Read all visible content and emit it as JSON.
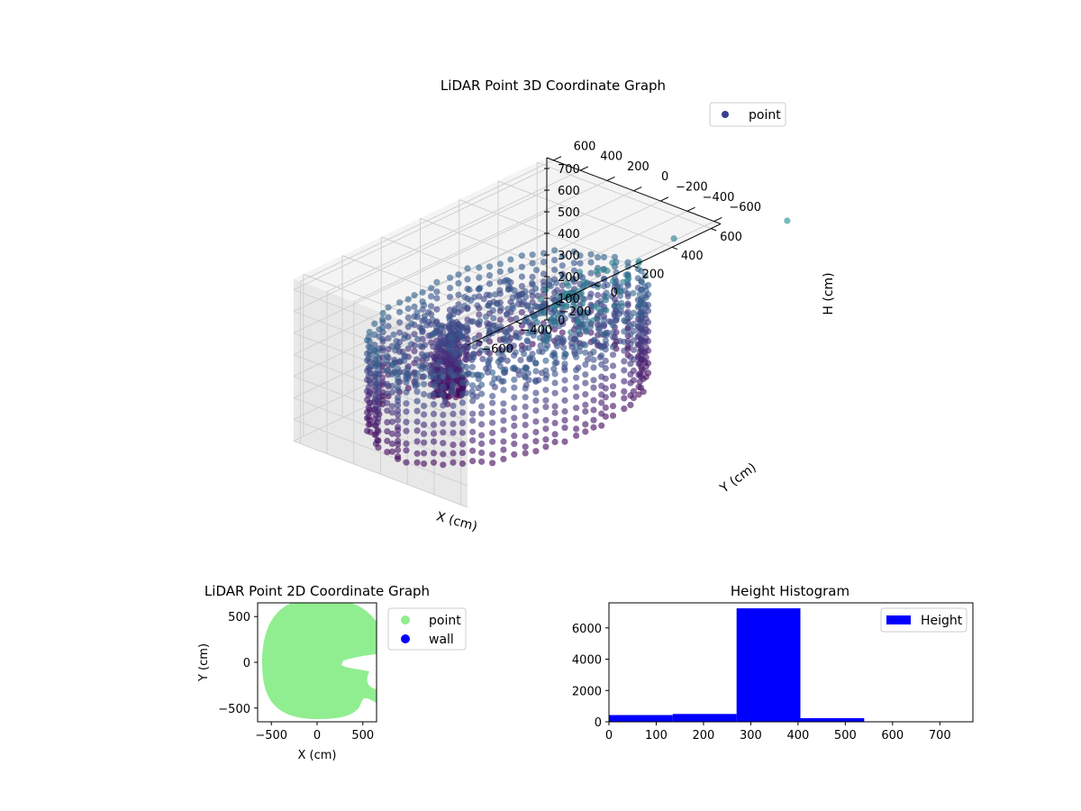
{
  "chart_data": [
    {
      "type": "scatter",
      "projection": "3d",
      "title": "LiDAR Point 3D Coordinate Graph",
      "xlabel": "X (cm)",
      "ylabel": "Y (cm)",
      "zlabel": "H (cm)",
      "x_ticks": [
        -600,
        -400,
        -200,
        0,
        200,
        400,
        600
      ],
      "y_ticks": [
        -600,
        -400,
        -200,
        0,
        200,
        400,
        600
      ],
      "z_ticks": [
        0,
        100,
        200,
        300,
        400,
        500,
        600,
        700
      ],
      "xlim": [
        -650,
        650
      ],
      "ylim": [
        -650,
        650
      ],
      "zlim": [
        750,
        0
      ],
      "z_inverted": true,
      "legend": {
        "position": "top-right",
        "entries": [
          {
            "label": "point",
            "color": "#3b3f8c"
          }
        ]
      },
      "series": [
        {
          "name": "point",
          "colormap": "viridis",
          "shape": "ring of points around a dense cluster near the center",
          "outliers": [
            [
              300,
              -350,
              650
            ],
            [
              150,
              -450,
              700
            ],
            [
              650,
              -300,
              600
            ],
            [
              820,
              -900,
              750
            ]
          ]
        }
      ],
      "grid": true
    },
    {
      "type": "scatter",
      "title": "LiDAR Point 2D Coordinate Graph",
      "xlabel": "X (cm)",
      "ylabel": "Y (cm)",
      "x_ticks": [
        -500,
        0,
        500
      ],
      "y_ticks": [
        -500,
        0,
        500
      ],
      "xlim": [
        -650,
        650
      ],
      "ylim": [
        -650,
        650
      ],
      "legend": {
        "position": "outside-right",
        "entries": [
          {
            "label": "point",
            "color": "#90ee90"
          },
          {
            "label": "wall",
            "color": "#0000ff"
          }
        ]
      },
      "series": [
        {
          "name": "point",
          "color": "#90ee90",
          "region": "filled disc of radius ~610 cm centered near (0,0)"
        },
        {
          "name": "wall",
          "color": "#0000ff",
          "points": []
        }
      ]
    },
    {
      "type": "bar",
      "title": "Height Histogram",
      "xlabel": "",
      "ylabel": "",
      "bin_edges": [
        0,
        135,
        270,
        405,
        540,
        675,
        770
      ],
      "values": [
        430,
        500,
        7250,
        230,
        30,
        10
      ],
      "x_ticks": [
        0,
        100,
        200,
        300,
        400,
        500,
        600,
        700
      ],
      "y_ticks": [
        0,
        2000,
        4000,
        6000
      ],
      "xlim": [
        0,
        770
      ],
      "ylim": [
        0,
        7600
      ],
      "color": "#0000ff",
      "legend": {
        "position": "top-right",
        "entries": [
          {
            "label": "Height",
            "color": "#0000ff"
          }
        ]
      }
    }
  ]
}
